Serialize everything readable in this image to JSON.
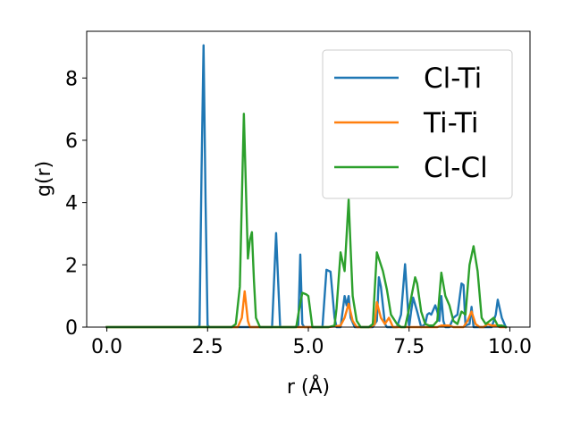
{
  "chart_data": {
    "type": "line",
    "xlabel": "r (Å)",
    "ylabel": "g(r)",
    "xlim": [
      -0.5,
      10.5
    ],
    "ylim": [
      0,
      9.5
    ],
    "xticks": [
      0.0,
      2.5,
      5.0,
      7.5,
      10.0
    ],
    "xtick_labels": [
      "0.0",
      "2.5",
      "5.0",
      "7.5",
      "10.0"
    ],
    "yticks": [
      0,
      2,
      4,
      6,
      8
    ],
    "ytick_labels": [
      "0",
      "2",
      "4",
      "6",
      "8"
    ],
    "grid": false,
    "legend": "top-right",
    "series": [
      {
        "name": "Cl-Ti",
        "color": "#1f77b4",
        "x": [
          0.0,
          2.25,
          2.3,
          2.35,
          2.4,
          2.45,
          2.5,
          2.55,
          4.1,
          4.15,
          4.2,
          4.25,
          4.3,
          4.65,
          4.75,
          4.8,
          4.85,
          4.9,
          5.35,
          5.45,
          5.55,
          5.65,
          5.7,
          5.8,
          5.85,
          5.9,
          5.95,
          6.0,
          6.05,
          6.15,
          6.6,
          6.7,
          6.75,
          6.8,
          6.9,
          6.95,
          7.2,
          7.3,
          7.4,
          7.5,
          7.55,
          7.6,
          7.7,
          7.8,
          7.9,
          7.95,
          8.0,
          8.05,
          8.15,
          8.2,
          8.25,
          8.3,
          8.35,
          8.4,
          8.5,
          8.6,
          8.7,
          8.8,
          8.85,
          8.9,
          9.0,
          9.05,
          9.1,
          9.2,
          9.55,
          9.65,
          9.7,
          9.8,
          9.9
        ],
        "y": [
          0,
          0,
          0.05,
          5.0,
          9.05,
          4.0,
          0.05,
          0,
          0,
          1.5,
          3.02,
          1.5,
          0,
          0,
          0.05,
          2.33,
          0.1,
          0,
          0,
          1.84,
          1.78,
          0.3,
          0,
          0,
          0.5,
          1.0,
          0.7,
          1.0,
          0.3,
          0,
          0,
          0.2,
          1.6,
          1.3,
          0.1,
          0,
          0,
          0.4,
          2.02,
          0,
          0.5,
          0.95,
          0.5,
          0,
          0.1,
          0.4,
          0.45,
          0.4,
          0.7,
          0.5,
          0.2,
          1.0,
          0.2,
          0,
          0,
          0.3,
          0.4,
          1.4,
          1.35,
          0.05,
          0.1,
          0.65,
          0,
          0,
          0,
          0.4,
          0.88,
          0.3,
          0
        ]
      },
      {
        "name": "Ti-Ti",
        "color": "#ff7f0e",
        "x": [
          0.0,
          3.25,
          3.35,
          3.42,
          3.5,
          3.55,
          3.65,
          5.5,
          5.8,
          5.9,
          6.0,
          6.1,
          6.2,
          6.55,
          6.65,
          6.7,
          6.8,
          6.9,
          7.0,
          7.1,
          7.3,
          7.6,
          8.2,
          8.3,
          8.4,
          8.5,
          8.6,
          8.85,
          8.95,
          9.05,
          9.15,
          9.25,
          9.35,
          9.45,
          9.55,
          9.65,
          9.75,
          9.9
        ],
        "y": [
          0,
          0,
          0.3,
          1.15,
          0.2,
          0,
          0,
          0,
          0.05,
          0.3,
          0.75,
          0.2,
          0,
          0,
          0.1,
          0.8,
          0.3,
          0.1,
          0.3,
          0,
          0,
          0,
          0,
          0.05,
          0.05,
          0.05,
          0,
          0,
          0.2,
          0.5,
          0.1,
          0,
          0,
          0.1,
          0.05,
          0.05,
          0,
          0
        ]
      },
      {
        "name": "Cl-Cl",
        "color": "#2ca02c",
        "x": [
          0.0,
          3.1,
          3.2,
          3.3,
          3.4,
          3.45,
          3.5,
          3.55,
          3.6,
          3.65,
          3.7,
          3.8,
          4.2,
          4.7,
          4.75,
          4.85,
          4.95,
          5.0,
          5.1,
          5.5,
          5.65,
          5.7,
          5.8,
          5.9,
          6.0,
          6.05,
          6.1,
          6.2,
          6.3,
          6.4,
          6.5,
          6.6,
          6.7,
          6.85,
          6.95,
          7.05,
          7.2,
          7.3,
          7.4,
          7.5,
          7.65,
          7.7,
          7.8,
          7.9,
          8.0,
          8.1,
          8.2,
          8.3,
          8.4,
          8.5,
          8.6,
          8.7,
          8.8,
          8.9,
          9.0,
          9.1,
          9.2,
          9.3,
          9.4,
          9.5,
          9.6,
          9.7,
          9.8,
          9.9
        ],
        "y": [
          0,
          0,
          0.1,
          1.3,
          6.85,
          4.5,
          2.2,
          2.8,
          3.05,
          1.5,
          0.3,
          0,
          0,
          0,
          0.4,
          1.1,
          1.05,
          1.0,
          0,
          0,
          0.05,
          0.6,
          2.4,
          1.8,
          4.1,
          2.5,
          1.0,
          0.2,
          0,
          0,
          0,
          0.1,
          2.4,
          1.8,
          1.2,
          0.4,
          0.1,
          0,
          0,
          0.6,
          1.6,
          1.4,
          0.5,
          0.1,
          0.05,
          0.05,
          0.2,
          1.75,
          1.0,
          0.7,
          0.2,
          0.1,
          0.5,
          0.4,
          2.0,
          2.6,
          1.8,
          0.3,
          0.1,
          0.2,
          0.3,
          0.05,
          0.05,
          0
        ]
      }
    ]
  }
}
